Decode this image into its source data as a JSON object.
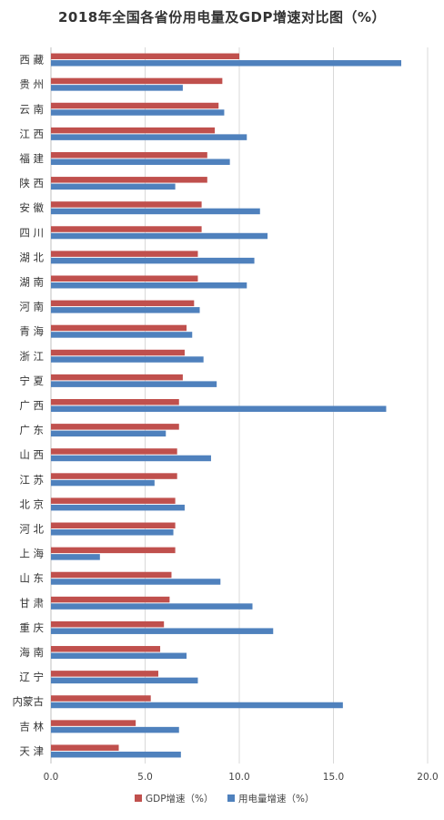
{
  "chart_data": {
    "type": "bar",
    "orientation": "horizontal",
    "title": "2018年全国各省份用电量及GDP增速对比图（%）",
    "categories": [
      "西藏",
      "贵州",
      "云南",
      "江西",
      "福建",
      "陕西",
      "安徽",
      "四川",
      "湖北",
      "湖南",
      "河南",
      "青海",
      "浙江",
      "宁夏",
      "广西",
      "广东",
      "山西",
      "江苏",
      "北京",
      "河北",
      "上海",
      "山东",
      "甘肃",
      "重庆",
      "海南",
      "辽宁",
      "内蒙古",
      "吉林",
      "天津"
    ],
    "series": [
      {
        "name": "GDP增速（%）",
        "color": "#c0504d",
        "values": [
          10.0,
          9.1,
          8.9,
          8.7,
          8.3,
          8.3,
          8.0,
          8.0,
          7.8,
          7.8,
          7.6,
          7.2,
          7.1,
          7.0,
          6.8,
          6.8,
          6.7,
          6.7,
          6.6,
          6.6,
          6.6,
          6.4,
          6.3,
          6.0,
          5.8,
          5.7,
          5.3,
          4.5,
          3.6
        ]
      },
      {
        "name": "用电量增速（%）",
        "color": "#4f81bd",
        "values": [
          18.6,
          7.0,
          9.2,
          10.4,
          9.5,
          6.6,
          11.1,
          11.5,
          10.8,
          10.4,
          7.9,
          7.5,
          8.1,
          8.8,
          17.8,
          6.1,
          8.5,
          5.5,
          7.1,
          6.5,
          2.6,
          9.0,
          10.7,
          11.8,
          7.2,
          7.8,
          15.5,
          6.8,
          6.9
        ]
      }
    ],
    "xlim": [
      0,
      20
    ],
    "xticks": [
      "0.0",
      "5.0",
      "10.0",
      "15.0",
      "20.0"
    ],
    "grid": true,
    "legend_position": "bottom"
  }
}
